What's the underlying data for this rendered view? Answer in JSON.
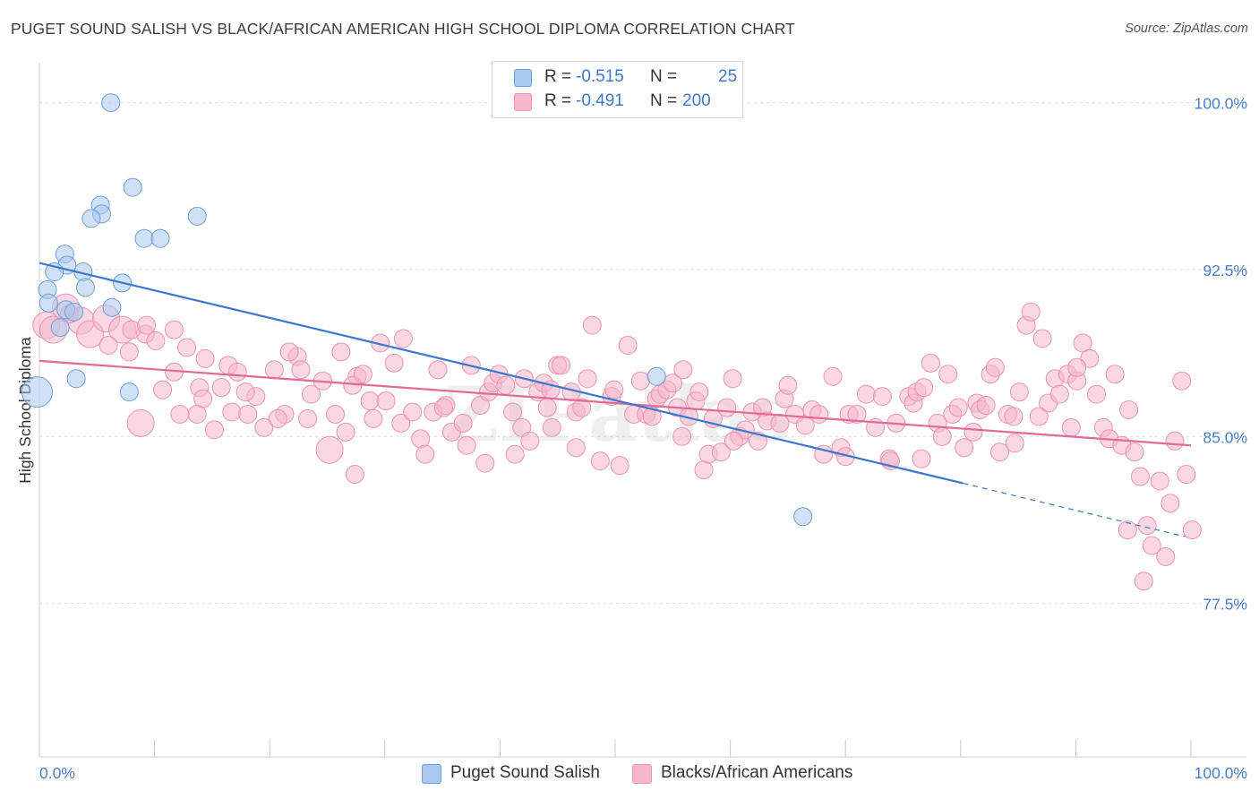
{
  "title": "PUGET SOUND SALISH VS BLACK/AFRICAN AMERICAN HIGH SCHOOL DIPLOMA CORRELATION CHART",
  "source": "Source: ZipAtlas.com",
  "watermark": "ZIPatlas",
  "legend": {
    "rows": [
      {
        "r_label": "R = ",
        "r_value": "-0.515",
        "n_label": "N = ",
        "n_value": "25",
        "color": "#a9c8ee"
      },
      {
        "r_label": "R = ",
        "r_value": "-0.491",
        "n_label": "N = ",
        "n_value": "200",
        "color": "#f6b6cb"
      }
    ]
  },
  "chart_data": {
    "type": "scatter",
    "xlabel": "",
    "ylabel": "High School Diploma",
    "xlim": [
      0,
      100
    ],
    "ylim": [
      70.6,
      101.8
    ],
    "x_tick_labels": [
      "0.0%",
      "100.0%"
    ],
    "y_ticks": [
      {
        "value": 100.0,
        "label": "100.0%"
      },
      {
        "value": 92.5,
        "label": "92.5%"
      },
      {
        "value": 85.0,
        "label": "85.0%"
      },
      {
        "value": 77.5,
        "label": "77.5%"
      }
    ],
    "grid": "horizontal dashed",
    "legend_position": "top-center and bottom",
    "series": [
      {
        "name": "Puget Sound Salish",
        "color": "#a9c8ee",
        "stroke": "#6d9fd9",
        "trend": {
          "color": "#3a78d0",
          "x0": 0,
          "y0": 92.8,
          "x1": 80.2,
          "y1": 82.9,
          "dash_to_x": 99.5,
          "dash_to_y": 80.5
        },
        "points": [
          [
            6.2,
            100.0
          ],
          [
            8.1,
            96.2
          ],
          [
            5.3,
            95.4
          ],
          [
            5.4,
            95.0
          ],
          [
            4.5,
            94.8
          ],
          [
            13.7,
            94.9
          ],
          [
            9.1,
            93.9
          ],
          [
            10.5,
            93.9
          ],
          [
            2.2,
            93.2
          ],
          [
            2.4,
            92.7
          ],
          [
            1.3,
            92.4
          ],
          [
            3.8,
            92.4
          ],
          [
            7.2,
            91.9
          ],
          [
            0.7,
            91.6
          ],
          [
            4.0,
            91.7
          ],
          [
            0.8,
            91.0
          ],
          [
            2.3,
            90.7
          ],
          [
            3.0,
            90.6
          ],
          [
            6.3,
            90.8
          ],
          [
            1.8,
            89.9
          ],
          [
            -0.2,
            87.0,
            "big"
          ],
          [
            3.2,
            87.6
          ],
          [
            7.8,
            87.0
          ],
          [
            53.6,
            87.7
          ],
          [
            66.3,
            81.4
          ]
        ]
      },
      {
        "name": "Blacks/African Americans",
        "color": "#f6b6cb",
        "stroke": "#e993b2",
        "trend": {
          "color": "#e2699a",
          "x0": 0,
          "y0": 88.4,
          "x1": 100,
          "y1": 84.6
        },
        "points": [
          [
            0.6,
            90.0,
            "big"
          ],
          [
            1.2,
            89.8,
            "big"
          ],
          [
            2.3,
            90.8,
            "big"
          ],
          [
            3.6,
            90.2,
            "big"
          ],
          [
            4.4,
            89.6,
            "big"
          ],
          [
            5.8,
            90.3,
            "big"
          ],
          [
            7.2,
            89.8,
            "big"
          ],
          [
            2.6,
            90.5
          ],
          [
            6.0,
            89.1
          ],
          [
            9.2,
            89.6
          ],
          [
            7.8,
            88.8
          ],
          [
            10.1,
            89.3
          ],
          [
            11.7,
            89.8
          ],
          [
            8.0,
            89.8
          ],
          [
            9.3,
            90.0
          ],
          [
            12.8,
            89.0
          ],
          [
            14.4,
            88.5
          ],
          [
            16.4,
            88.2
          ],
          [
            11.7,
            87.9
          ],
          [
            13.9,
            87.2
          ],
          [
            15.8,
            87.2
          ],
          [
            17.2,
            87.9
          ],
          [
            18.8,
            86.8
          ],
          [
            14.2,
            86.7
          ],
          [
            16.7,
            86.1
          ],
          [
            18.1,
            86.0
          ],
          [
            13.7,
            86.0
          ],
          [
            12.2,
            86.0
          ],
          [
            10.7,
            87.1
          ],
          [
            8.8,
            85.6,
            "big"
          ],
          [
            19.5,
            85.4
          ],
          [
            20.4,
            88.0
          ],
          [
            21.3,
            86.0
          ],
          [
            22.4,
            88.6
          ],
          [
            21.7,
            88.8
          ],
          [
            22.7,
            88.0
          ],
          [
            23.6,
            86.9
          ],
          [
            24.6,
            87.5
          ],
          [
            23.3,
            85.8
          ],
          [
            25.7,
            86.0
          ],
          [
            26.2,
            88.8
          ],
          [
            26.6,
            85.2
          ],
          [
            25.2,
            84.4,
            "big"
          ],
          [
            27.6,
            87.7
          ],
          [
            27.2,
            87.3
          ],
          [
            28.1,
            87.8
          ],
          [
            29.6,
            89.2
          ],
          [
            28.7,
            86.6
          ],
          [
            29.0,
            85.8
          ],
          [
            30.1,
            86.6
          ],
          [
            31.6,
            89.4
          ],
          [
            30.8,
            88.3
          ],
          [
            31.4,
            85.6
          ],
          [
            32.4,
            86.1
          ],
          [
            33.1,
            84.9
          ],
          [
            33.5,
            84.2
          ],
          [
            34.2,
            86.1
          ],
          [
            34.6,
            88.0
          ],
          [
            35.3,
            86.4
          ],
          [
            35.1,
            86.3
          ],
          [
            35.8,
            85.2
          ],
          [
            36.8,
            85.6
          ],
          [
            37.1,
            84.6
          ],
          [
            37.5,
            88.2
          ],
          [
            38.3,
            86.4
          ],
          [
            39.0,
            87.0
          ],
          [
            39.4,
            87.4
          ],
          [
            39.9,
            87.8
          ],
          [
            40.5,
            87.3
          ],
          [
            41.1,
            86.1
          ],
          [
            41.3,
            84.2
          ],
          [
            41.9,
            85.4
          ],
          [
            42.6,
            84.8
          ],
          [
            43.3,
            87.0
          ],
          [
            43.8,
            87.4
          ],
          [
            44.1,
            86.3
          ],
          [
            44.4,
            87.1
          ],
          [
            45.0,
            88.2
          ],
          [
            45.3,
            88.2
          ],
          [
            46.2,
            87.0
          ],
          [
            46.6,
            86.1
          ],
          [
            46.6,
            84.5
          ],
          [
            47.1,
            86.3
          ],
          [
            47.6,
            87.6
          ],
          [
            48.0,
            90.0
          ],
          [
            48.7,
            83.9
          ],
          [
            49.7,
            86.8
          ],
          [
            49.9,
            87.1
          ],
          [
            50.4,
            83.7
          ],
          [
            51.1,
            89.1
          ],
          [
            51.6,
            86.0
          ],
          [
            52.2,
            87.5
          ],
          [
            52.7,
            86.0
          ],
          [
            53.2,
            85.9
          ],
          [
            53.6,
            86.7
          ],
          [
            53.9,
            86.9
          ],
          [
            54.5,
            87.1
          ],
          [
            55.0,
            87.4
          ],
          [
            55.4,
            86.3
          ],
          [
            55.8,
            85.0
          ],
          [
            56.4,
            85.9
          ],
          [
            57.0,
            86.6
          ],
          [
            57.3,
            87.0
          ],
          [
            57.7,
            83.5
          ],
          [
            58.1,
            84.2
          ],
          [
            58.5,
            85.8
          ],
          [
            59.2,
            84.3
          ],
          [
            59.7,
            86.3
          ],
          [
            60.2,
            87.6
          ],
          [
            60.8,
            85.0
          ],
          [
            61.3,
            85.3
          ],
          [
            61.9,
            86.1
          ],
          [
            62.4,
            84.8
          ],
          [
            62.8,
            86.3
          ],
          [
            63.2,
            85.7
          ],
          [
            64.3,
            85.6
          ],
          [
            64.7,
            86.7
          ],
          [
            65.0,
            87.3
          ],
          [
            65.6,
            86.0
          ],
          [
            66.5,
            85.5
          ],
          [
            67.1,
            86.2
          ],
          [
            67.7,
            86.0
          ],
          [
            68.1,
            84.2
          ],
          [
            68.9,
            87.7
          ],
          [
            69.6,
            84.5
          ],
          [
            70.3,
            86.0
          ],
          [
            71.0,
            86.0
          ],
          [
            71.8,
            86.9
          ],
          [
            72.6,
            85.4
          ],
          [
            73.2,
            86.8
          ],
          [
            73.8,
            84.0
          ],
          [
            74.4,
            85.6
          ],
          [
            75.5,
            86.8
          ],
          [
            75.9,
            86.5
          ],
          [
            76.2,
            87.0
          ],
          [
            76.8,
            87.2
          ],
          [
            77.4,
            88.3
          ],
          [
            78.0,
            85.6
          ],
          [
            78.4,
            85.0
          ],
          [
            79.3,
            86.0
          ],
          [
            79.8,
            86.3
          ],
          [
            80.3,
            84.5
          ],
          [
            81.1,
            85.2
          ],
          [
            81.4,
            86.5
          ],
          [
            81.7,
            86.2
          ],
          [
            82.2,
            86.4
          ],
          [
            82.6,
            87.8
          ],
          [
            83.0,
            88.1
          ],
          [
            83.4,
            84.3
          ],
          [
            84.1,
            86.0
          ],
          [
            84.6,
            85.9
          ],
          [
            85.1,
            87.0
          ],
          [
            85.7,
            90.0
          ],
          [
            86.1,
            90.6
          ],
          [
            87.1,
            89.4
          ],
          [
            87.6,
            86.5
          ],
          [
            88.2,
            87.6
          ],
          [
            88.6,
            86.9
          ],
          [
            89.3,
            87.8
          ],
          [
            89.6,
            85.4
          ],
          [
            90.1,
            87.5
          ],
          [
            90.6,
            89.2
          ],
          [
            91.2,
            88.5
          ],
          [
            91.8,
            86.9
          ],
          [
            92.4,
            85.4
          ],
          [
            92.9,
            84.9
          ],
          [
            93.4,
            87.8
          ],
          [
            94.0,
            84.6
          ],
          [
            94.6,
            86.2
          ],
          [
            95.1,
            84.3
          ],
          [
            95.6,
            83.2
          ],
          [
            96.2,
            81.0
          ],
          [
            96.6,
            80.1
          ],
          [
            97.3,
            83.0
          ],
          [
            97.8,
            79.6
          ],
          [
            98.2,
            82.0
          ],
          [
            98.6,
            84.8
          ],
          [
            99.2,
            87.5
          ],
          [
            99.6,
            83.3
          ],
          [
            100.1,
            80.8
          ],
          [
            94.5,
            80.8
          ],
          [
            95.9,
            78.5
          ],
          [
            90.1,
            88.1
          ],
          [
            86.8,
            85.9
          ],
          [
            44.5,
            85.4
          ],
          [
            38.7,
            83.8
          ],
          [
            27.4,
            83.3
          ],
          [
            20.7,
            85.8
          ],
          [
            17.9,
            87.0
          ],
          [
            15.2,
            85.3
          ],
          [
            42.1,
            87.6
          ],
          [
            55.9,
            88.0
          ],
          [
            60.3,
            84.8
          ],
          [
            70.0,
            84.1
          ],
          [
            73.9,
            83.9
          ],
          [
            76.6,
            84.0
          ],
          [
            78.9,
            87.8
          ],
          [
            84.7,
            84.7
          ]
        ]
      }
    ]
  },
  "bottom_legend": [
    {
      "label": "Puget Sound Salish",
      "color": "#a9c8ee"
    },
    {
      "label": "Blacks/African Americans",
      "color": "#f6b6cb"
    }
  ]
}
